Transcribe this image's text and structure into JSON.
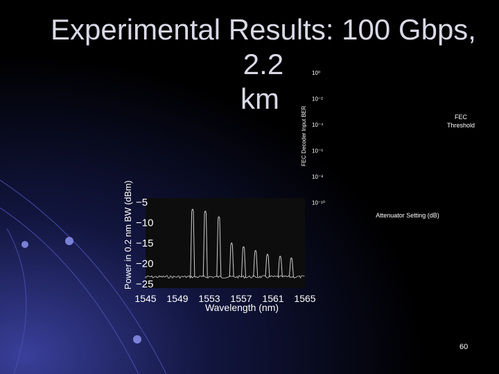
{
  "slide": {
    "title_line1": "Experimental Results: 100 Gbps, 2.2",
    "title_line2": "km",
    "page_number": "60"
  },
  "colors": {
    "background": "#000000",
    "title": "#d9d9e6",
    "text": "#ffffff",
    "spectrum": "#cfcfcf",
    "spectrum_bg": "#111111"
  },
  "chart_data": [
    {
      "type": "line",
      "ylabel": "Power in 0.2 nm BW (dBm)",
      "xlabel": "Wavelength (nm)",
      "x_ticks": [
        "1545",
        "1549",
        "1553",
        "1557",
        "1561",
        "1565"
      ],
      "y_ticks": [
        "−5",
        "−10",
        "−15",
        "−20",
        "−25"
      ],
      "xlim": [
        1545,
        1565
      ],
      "ylim": [
        -27,
        -3
      ],
      "grid": false,
      "peaks": [
        {
          "x": 1550.9,
          "y": -6
        },
        {
          "x": 1552.5,
          "y": -6.5
        },
        {
          "x": 1554.2,
          "y": -8
        },
        {
          "x": 1555.8,
          "y": -15
        },
        {
          "x": 1557.3,
          "y": -16
        },
        {
          "x": 1558.8,
          "y": -17
        },
        {
          "x": 1560.3,
          "y": -18
        },
        {
          "x": 1561.9,
          "y": -18.5
        },
        {
          "x": 1563.3,
          "y": -19
        }
      ],
      "noise_floor": -24
    },
    {
      "type": "line",
      "ylabel": "FEC Decoder Input BER",
      "xlabel": "Attenuator Setting (dB)",
      "y_ticks": [
        "10⁰",
        "10⁻²",
        "10⁻⁴",
        "10⁻⁶",
        "10⁻⁸",
        "10⁻¹⁰"
      ],
      "annotations": [
        "FEC",
        "Threshold"
      ],
      "grid": false
    }
  ]
}
